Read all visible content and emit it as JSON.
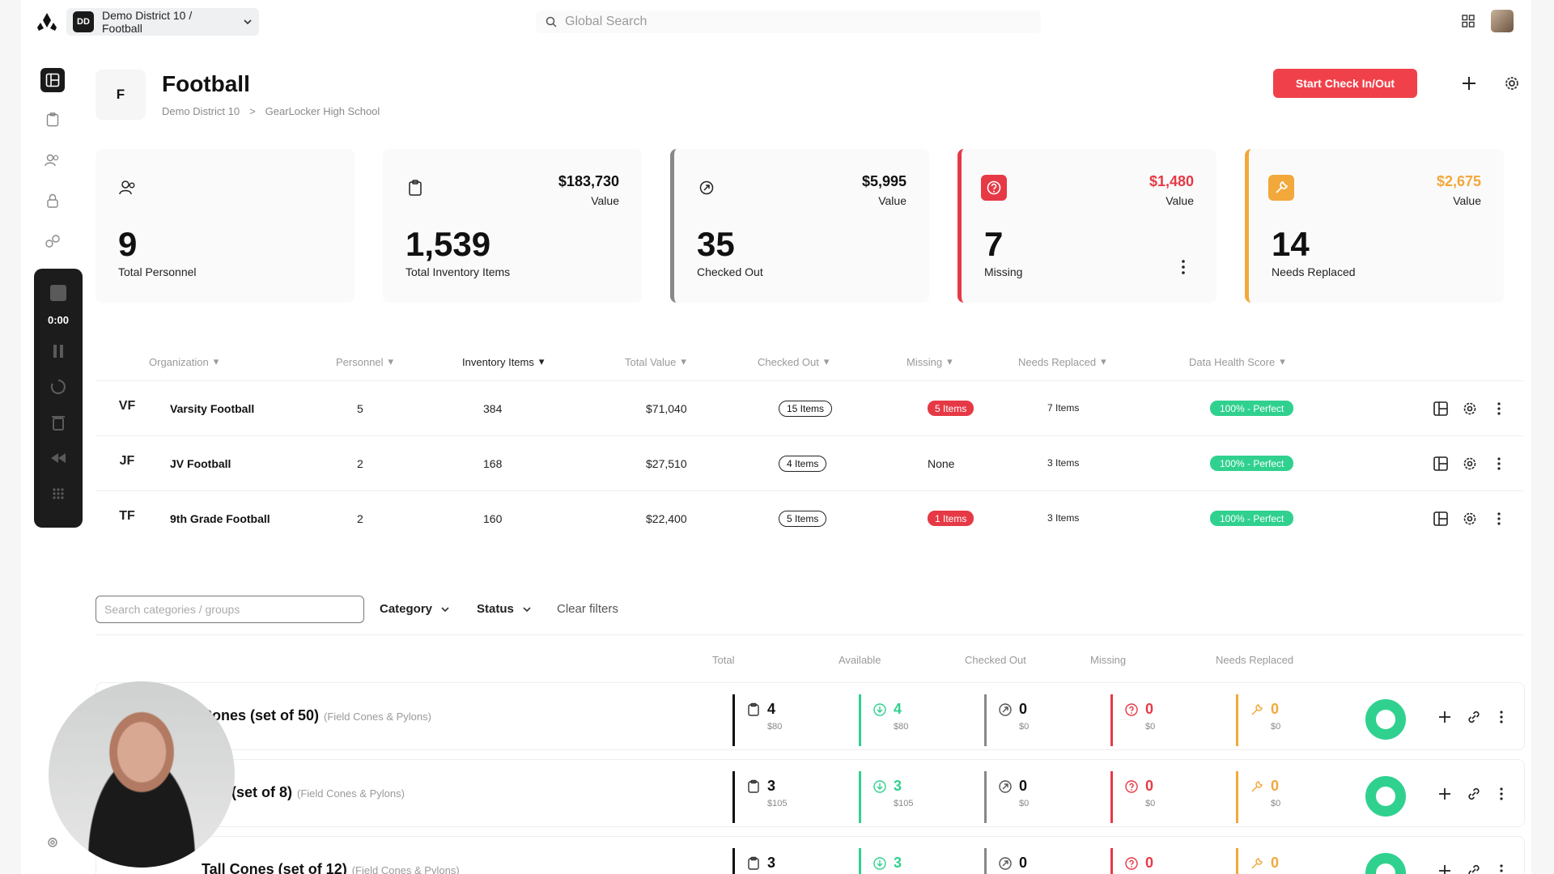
{
  "topbar": {
    "org_badge": "DD",
    "org_label": "Demo District 10 / Football",
    "search_placeholder": "Global Search"
  },
  "recorder": {
    "time": "0:00"
  },
  "header": {
    "badge": "F",
    "title": "Football",
    "breadcrumb": [
      "Demo District 10",
      ">",
      "GearLocker High School"
    ],
    "start_button": "Start Check In/Out"
  },
  "cards": [
    {
      "number": "9",
      "label": "Total Personnel",
      "value": "",
      "value_label": "",
      "icon": "people-icon"
    },
    {
      "number": "1,539",
      "label": "Total Inventory Items",
      "value": "$183,730",
      "value_label": "Value",
      "icon": "clipboard-icon"
    },
    {
      "number": "35",
      "label": "Checked Out",
      "value": "$5,995",
      "value_label": "Value",
      "icon": "checkout-icon",
      "accent": "#888888"
    },
    {
      "number": "7",
      "label": "Missing",
      "value": "$1,480",
      "value_label": "Value",
      "icon": "question-icon",
      "accent": "#e63946"
    },
    {
      "number": "14",
      "label": "Needs Replaced",
      "value": "$2,675",
      "value_label": "Value",
      "icon": "wrench-icon",
      "accent": "#f2a83b"
    }
  ],
  "org_table": {
    "headers": [
      "Organization",
      "Personnel",
      "Inventory Items",
      "Total Value",
      "Checked Out",
      "Missing",
      "Needs Replaced",
      "Data Health Score"
    ],
    "rows": [
      {
        "abbr": "VF",
        "name": "Varsity Football",
        "personnel": "5",
        "inventory": "384",
        "value": "$71,040",
        "checked_out": "15 Items",
        "missing": "5 Items",
        "needs_replaced": "7 Items",
        "health": "100% - Perfect"
      },
      {
        "abbr": "JF",
        "name": "JV Football",
        "personnel": "2",
        "inventory": "168",
        "value": "$27,510",
        "checked_out": "4 Items",
        "missing": "None",
        "needs_replaced": "3 Items",
        "health": "100% - Perfect"
      },
      {
        "abbr": "TF",
        "name": "9th Grade Football",
        "personnel": "2",
        "inventory": "160",
        "value": "$22,400",
        "checked_out": "5 Items",
        "missing": "1 Items",
        "needs_replaced": "3 Items",
        "health": "100% - Perfect"
      }
    ]
  },
  "filters": {
    "search_placeholder": "Search categories / groups",
    "category": "Category",
    "status": "Status",
    "clear": "Clear filters"
  },
  "items_table": {
    "headers": [
      "Total",
      "Available",
      "Checked Out",
      "Missing",
      "Needs Replaced"
    ],
    "rows": [
      {
        "title": "Cones (set of 50)",
        "category": "(Field Cones & Pylons)",
        "total": "4",
        "total_v": "$80",
        "avail": "4",
        "avail_v": "$80",
        "out": "0",
        "out_v": "$0",
        "missing": "0",
        "missing_v": "$0",
        "repl": "0",
        "repl_v": "$0"
      },
      {
        "title": "ons (set of 8)",
        "category": "(Field Cones & Pylons)",
        "total": "3",
        "total_v": "$105",
        "avail": "3",
        "avail_v": "$105",
        "out": "0",
        "out_v": "$0",
        "missing": "0",
        "missing_v": "$0",
        "repl": "0",
        "repl_v": "$0"
      },
      {
        "title": "Tall Cones (set of 12)",
        "category": "(Field Cones & Pylons)",
        "total": "3",
        "total_v": "",
        "avail": "3",
        "avail_v": "",
        "out": "0",
        "out_v": "",
        "missing": "0",
        "missing_v": "",
        "repl": "0",
        "repl_v": ""
      }
    ]
  },
  "colors": {
    "red": "#e63946",
    "green": "#30d18f",
    "orange": "#f2a83b",
    "gray": "#888888"
  }
}
